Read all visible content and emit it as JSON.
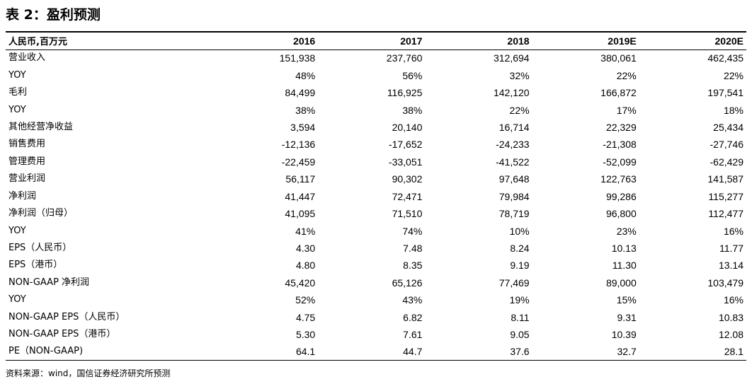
{
  "title": "表 2：盈利预测",
  "table": {
    "header_label": "人民币,百万元",
    "columns": [
      "2016",
      "2017",
      "2018",
      "2019E",
      "2020E"
    ],
    "rows": [
      {
        "label": "营业收入",
        "values": [
          "151,938",
          "237,760",
          "312,694",
          "380,061",
          "462,435"
        ]
      },
      {
        "label": "YOY",
        "values": [
          "48%",
          "56%",
          "32%",
          "22%",
          "22%"
        ]
      },
      {
        "label": "毛利",
        "values": [
          "84,499",
          "116,925",
          "142,120",
          "166,872",
          "197,541"
        ]
      },
      {
        "label": "YOY",
        "values": [
          "38%",
          "38%",
          "22%",
          "17%",
          "18%"
        ]
      },
      {
        "label": "其他经营净收益",
        "values": [
          "3,594",
          "20,140",
          "16,714",
          "22,329",
          "25,434"
        ]
      },
      {
        "label": "销售费用",
        "values": [
          "-12,136",
          "-17,652",
          "-24,233",
          "-21,308",
          "-27,746"
        ]
      },
      {
        "label": "管理费用",
        "values": [
          "-22,459",
          "-33,051",
          "-41,522",
          "-52,099",
          "-62,429"
        ]
      },
      {
        "label": "营业利润",
        "values": [
          "56,117",
          "90,302",
          "97,648",
          "122,763",
          "141,587"
        ]
      },
      {
        "label": "净利润",
        "values": [
          "41,447",
          "72,471",
          "79,984",
          "99,286",
          "115,277"
        ]
      },
      {
        "label": "净利润（归母）",
        "values": [
          "41,095",
          "71,510",
          "78,719",
          "96,800",
          "112,477"
        ]
      },
      {
        "label": "YOY",
        "values": [
          "41%",
          "74%",
          "10%",
          "23%",
          "16%"
        ]
      },
      {
        "label": "EPS（人民币）",
        "values": [
          "4.30",
          "7.48",
          "8.24",
          "10.13",
          "11.77"
        ]
      },
      {
        "label": "EPS（港币）",
        "values": [
          "4.80",
          "8.35",
          "9.19",
          "11.30",
          "13.14"
        ]
      },
      {
        "label": "NON-GAAP 净利润",
        "values": [
          "45,420",
          "65,126",
          "77,469",
          "89,000",
          "103,479"
        ]
      },
      {
        "label": "YOY",
        "values": [
          "52%",
          "43%",
          "19%",
          "15%",
          "16%"
        ]
      },
      {
        "label": "NON-GAAP EPS（人民币）",
        "values": [
          "4.75",
          "6.82",
          "8.11",
          "9.31",
          "10.83"
        ]
      },
      {
        "label": "NON-GAAP EPS（港币）",
        "values": [
          "5.30",
          "7.61",
          "9.05",
          "10.39",
          "12.08"
        ]
      },
      {
        "label": "PE（NON-GAAP)",
        "values": [
          "64.1",
          "44.7",
          "37.6",
          "32.7",
          "28.1"
        ]
      }
    ]
  },
  "source": "资料来源：wind，国信证券经济研究所预测"
}
